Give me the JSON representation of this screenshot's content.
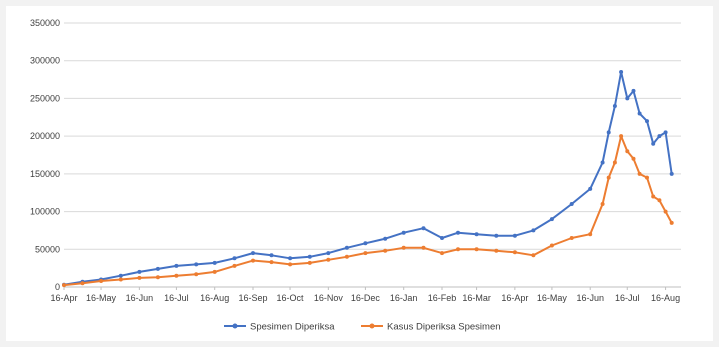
{
  "chart_data": {
    "type": "line",
    "title": "",
    "xlabel": "",
    "ylabel": "",
    "ylim": [
      0,
      350000
    ],
    "y_ticks": [
      "0",
      "50000",
      "100000",
      "150000",
      "200000",
      "250000",
      "300000",
      "350000"
    ],
    "x_ticks": [
      "16-Apr",
      "16-May",
      "16-Jun",
      "16-Jul",
      "16-Aug",
      "16-Sep",
      "16-Oct",
      "16-Nov",
      "16-Dec",
      "16-Jan",
      "16-Feb",
      "16-Mar",
      "16-Apr",
      "16-May",
      "16-Jun",
      "16-Jul",
      "16-Aug"
    ],
    "grid": "horizontal",
    "legend_position": "bottom",
    "x_note": "daily values, 16-Apr 2020 to ~21-Aug 2021; sampled every ~2 weeks",
    "x": [
      "2020-04-16",
      "2020-05-01",
      "2020-05-16",
      "2020-06-01",
      "2020-06-16",
      "2020-07-01",
      "2020-07-16",
      "2020-08-01",
      "2020-08-16",
      "2020-09-01",
      "2020-09-16",
      "2020-10-01",
      "2020-10-16",
      "2020-11-01",
      "2020-11-16",
      "2020-12-01",
      "2020-12-16",
      "2021-01-01",
      "2021-01-16",
      "2021-02-01",
      "2021-02-16",
      "2021-03-01",
      "2021-03-16",
      "2021-04-01",
      "2021-04-16",
      "2021-05-01",
      "2021-05-16",
      "2021-06-01",
      "2021-06-16",
      "2021-06-26",
      "2021-07-01",
      "2021-07-06",
      "2021-07-11",
      "2021-07-16",
      "2021-07-21",
      "2021-07-26",
      "2021-08-01",
      "2021-08-06",
      "2021-08-11",
      "2021-08-16",
      "2021-08-21"
    ],
    "series": [
      {
        "name": "Spesimen Diperiksa",
        "color": "#4472c4",
        "values": [
          3000,
          7000,
          10000,
          15000,
          20000,
          24000,
          28000,
          30000,
          32000,
          38000,
          45000,
          42000,
          38000,
          40000,
          45000,
          52000,
          58000,
          64000,
          72000,
          78000,
          65000,
          72000,
          70000,
          68000,
          68000,
          75000,
          90000,
          110000,
          130000,
          165000,
          205000,
          240000,
          285000,
          250000,
          260000,
          230000,
          220000,
          190000,
          200000,
          205000,
          150000
        ]
      },
      {
        "name": "Kasus Diperiksa Spesimen",
        "color": "#ed7d31",
        "values": [
          2500,
          5000,
          8000,
          10000,
          12000,
          13000,
          15000,
          17000,
          20000,
          28000,
          35000,
          33000,
          30000,
          32000,
          36000,
          40000,
          45000,
          48000,
          52000,
          52000,
          45000,
          50000,
          50000,
          48000,
          46000,
          42000,
          55000,
          65000,
          70000,
          110000,
          145000,
          165000,
          200000,
          180000,
          170000,
          150000,
          145000,
          120000,
          115000,
          100000,
          85000
        ]
      }
    ]
  }
}
